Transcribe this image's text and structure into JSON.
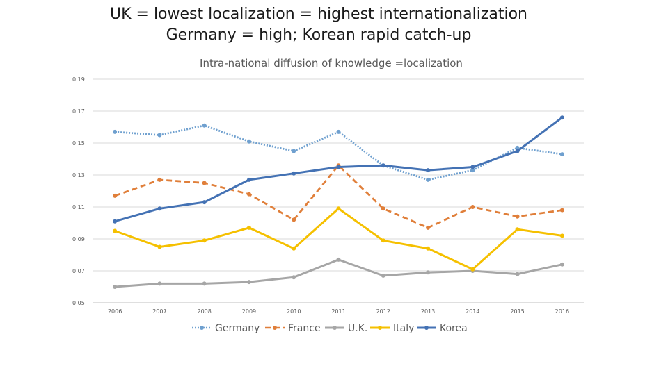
{
  "slide": {
    "title_line1": "UK = lowest localization = highest internationalization",
    "title_line2": "Germany = high; Korean rapid catch-up"
  },
  "chart_data": {
    "type": "line",
    "title": "Intra-national diffusion of knowledge =localization",
    "xlabel": "",
    "ylabel": "",
    "categories": [
      "2006",
      "2007",
      "2008",
      "2009",
      "2010",
      "2011",
      "2012",
      "2013",
      "2014",
      "2015",
      "2016"
    ],
    "ylim": [
      0.05,
      0.19
    ],
    "yticks": [
      "0.05",
      "0.07",
      "0.09",
      "0.11",
      "0.13",
      "0.15",
      "0.17",
      "0.19"
    ],
    "grid": true,
    "legend_position": "bottom",
    "series": [
      {
        "name": "Germany",
        "color": "#6fa0cf",
        "style": "dotted",
        "values": [
          0.157,
          0.155,
          0.161,
          0.151,
          0.145,
          0.157,
          0.136,
          0.127,
          0.133,
          0.147,
          0.143
        ]
      },
      {
        "name": "France",
        "color": "#e07f3a",
        "style": "dashed",
        "values": [
          0.117,
          0.127,
          0.125,
          0.118,
          0.102,
          0.136,
          0.109,
          0.097,
          0.11,
          0.104,
          0.108
        ]
      },
      {
        "name": "U.K.",
        "color": "#a6a6a6",
        "style": "solid",
        "values": [
          0.06,
          0.062,
          0.062,
          0.063,
          0.066,
          0.077,
          0.067,
          0.069,
          0.07,
          0.068,
          0.074
        ]
      },
      {
        "name": "Italy",
        "color": "#f5c000",
        "style": "solid",
        "values": [
          0.095,
          0.085,
          0.089,
          0.097,
          0.084,
          0.109,
          0.089,
          0.084,
          0.071,
          0.096,
          0.092
        ]
      },
      {
        "name": "Korea",
        "color": "#4472b4",
        "style": "solid",
        "values": [
          0.101,
          0.109,
          0.113,
          0.127,
          0.131,
          0.135,
          0.136,
          0.133,
          0.135,
          0.145,
          0.166
        ]
      }
    ]
  }
}
